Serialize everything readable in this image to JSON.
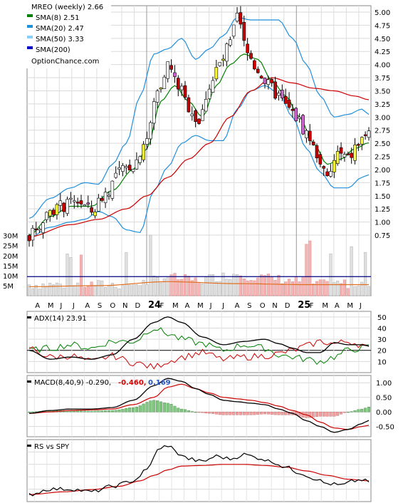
{
  "chart_data": [
    {
      "type": "candlestick",
      "title": "MREO (weekly) 2.66",
      "watermark": "OptionChance.com",
      "legend": [
        {
          "label": "SMA(8) 2.51",
          "color": "#008000"
        },
        {
          "label": "SMA(20) 2.47",
          "color": "#1f8fdc"
        },
        {
          "label": "SMA(50) 3.33",
          "color": "#87cefa"
        },
        {
          "label": "SMA(200)",
          "color": "#0000cc"
        }
      ],
      "legend_placement": "top-left",
      "y_ticks": [
        "5.00",
        "4.75",
        "4.50",
        "4.25",
        "4.00",
        "3.75",
        "3.50",
        "3.25",
        "3.00",
        "2.75",
        "2.50",
        "2.25",
        "2.00",
        "1.75",
        "1.50",
        "1.25",
        "1.00",
        "0.75"
      ],
      "ylim": [
        0.75,
        5.0
      ],
      "grid": true,
      "x_tick_labels": [
        "A",
        "M",
        "J",
        "J",
        "A",
        "S",
        "O",
        "N",
        "D",
        "24",
        "F",
        "M",
        "A",
        "M",
        "J",
        "J",
        "A",
        "S",
        "O",
        "N",
        "D",
        "25",
        "F",
        "M",
        "A",
        "M",
        "J"
      ],
      "price_knots": [
        [
          0,
          0.72
        ],
        [
          3,
          0.95
        ],
        [
          6,
          1.25
        ],
        [
          10,
          1.3
        ],
        [
          14,
          1.4
        ],
        [
          18,
          1.2
        ],
        [
          22,
          1.55
        ],
        [
          26,
          1.95
        ],
        [
          30,
          2.1
        ],
        [
          34,
          2.6
        ],
        [
          37,
          3.5
        ],
        [
          40,
          4.0
        ],
        [
          43,
          3.6
        ],
        [
          46,
          3.2
        ],
        [
          49,
          2.9
        ],
        [
          52,
          3.6
        ],
        [
          55,
          4.0
        ],
        [
          58,
          4.4
        ],
        [
          60,
          4.9
        ],
        [
          63,
          4.2
        ],
        [
          66,
          3.9
        ],
        [
          69,
          3.6
        ],
        [
          72,
          3.4
        ],
        [
          74,
          3.2
        ],
        [
          77,
          3.0
        ],
        [
          80,
          2.7
        ],
        [
          83,
          2.3
        ],
        [
          86,
          1.8
        ],
        [
          89,
          2.3
        ],
        [
          92,
          2.2
        ],
        [
          95,
          2.5
        ],
        [
          98,
          2.75
        ]
      ],
      "sma8_knots": [
        [
          0,
          0.75
        ],
        [
          6,
          1.1
        ],
        [
          12,
          1.3
        ],
        [
          18,
          1.3
        ],
        [
          24,
          1.6
        ],
        [
          30,
          2.0
        ],
        [
          34,
          2.4
        ],
        [
          38,
          3.3
        ],
        [
          42,
          3.6
        ],
        [
          46,
          3.3
        ],
        [
          50,
          3.0
        ],
        [
          54,
          3.6
        ],
        [
          58,
          4.0
        ],
        [
          62,
          4.2
        ],
        [
          66,
          4.1
        ],
        [
          70,
          3.7
        ],
        [
          74,
          3.4
        ],
        [
          78,
          3.0
        ],
        [
          82,
          2.5
        ],
        [
          86,
          2.1
        ],
        [
          90,
          2.2
        ],
        [
          94,
          2.4
        ],
        [
          98,
          2.51
        ]
      ],
      "sma20_knots": [
        [
          0,
          0.85
        ],
        [
          8,
          1.1
        ],
        [
          16,
          1.25
        ],
        [
          22,
          1.3
        ],
        [
          28,
          1.65
        ],
        [
          34,
          2.2
        ],
        [
          40,
          2.9
        ],
        [
          46,
          3.2
        ],
        [
          52,
          3.35
        ],
        [
          58,
          3.7
        ],
        [
          62,
          4.2
        ],
        [
          66,
          4.25
        ],
        [
          70,
          4.2
        ],
        [
          74,
          3.95
        ],
        [
          78,
          3.6
        ],
        [
          82,
          3.2
        ],
        [
          86,
          2.8
        ],
        [
          90,
          2.55
        ],
        [
          94,
          2.45
        ],
        [
          98,
          2.47
        ]
      ],
      "sma50_knots": [
        [
          0,
          0.72
        ],
        [
          12,
          0.95
        ],
        [
          20,
          1.05
        ],
        [
          28,
          1.25
        ],
        [
          34,
          1.5
        ],
        [
          40,
          1.85
        ],
        [
          46,
          2.2
        ],
        [
          52,
          2.5
        ],
        [
          58,
          3.0
        ],
        [
          64,
          3.5
        ],
        [
          70,
          3.75
        ],
        [
          76,
          3.65
        ],
        [
          82,
          3.55
        ],
        [
          88,
          3.5
        ],
        [
          94,
          3.4
        ],
        [
          98,
          3.33
        ]
      ],
      "bb_upper_knots": [
        [
          0,
          1.07
        ],
        [
          6,
          1.45
        ],
        [
          12,
          1.65
        ],
        [
          16,
          1.75
        ],
        [
          20,
          1.72
        ],
        [
          24,
          2.1
        ],
        [
          28,
          2.5
        ],
        [
          32,
          3.4
        ],
        [
          36,
          4.2
        ],
        [
          40,
          4.3
        ],
        [
          44,
          4.5
        ],
        [
          48,
          4.1
        ],
        [
          52,
          4.3
        ],
        [
          56,
          4.55
        ],
        [
          60,
          4.9
        ],
        [
          64,
          4.85
        ],
        [
          68,
          4.85
        ],
        [
          72,
          4.85
        ],
        [
          76,
          4.5
        ],
        [
          80,
          4.0
        ],
        [
          84,
          3.4
        ],
        [
          88,
          3.0
        ],
        [
          92,
          3.05
        ],
        [
          96,
          3.15
        ],
        [
          98,
          3.05
        ]
      ],
      "bb_lower_knots": [
        [
          0,
          0.7
        ],
        [
          6,
          0.9
        ],
        [
          12,
          1.0
        ],
        [
          16,
          1.05
        ],
        [
          20,
          1.2
        ],
        [
          24,
          1.1
        ],
        [
          28,
          0.85
        ],
        [
          32,
          0.8
        ],
        [
          36,
          1.6
        ],
        [
          40,
          2.05
        ],
        [
          44,
          2.5
        ],
        [
          48,
          2.65
        ],
        [
          52,
          2.55
        ],
        [
          56,
          2.55
        ],
        [
          60,
          3.15
        ],
        [
          64,
          3.5
        ],
        [
          68,
          3.6
        ],
        [
          72,
          3.45
        ],
        [
          76,
          3.0
        ],
        [
          80,
          2.4
        ],
        [
          84,
          1.95
        ],
        [
          88,
          1.65
        ],
        [
          92,
          1.65
        ],
        [
          96,
          1.85
        ],
        [
          98,
          1.9
        ]
      ],
      "volume_y_ticks": [
        "30M",
        "25M",
        "20M",
        "15M",
        "10M",
        "5M"
      ]
    },
    {
      "type": "line",
      "title": "ADX(14) 23.91",
      "y_ticks": [
        "50",
        "40",
        "30",
        "20",
        "10"
      ],
      "ylim": [
        0,
        55
      ],
      "adx_knots": [
        [
          0,
          20
        ],
        [
          6,
          12
        ],
        [
          12,
          14
        ],
        [
          18,
          12
        ],
        [
          24,
          16
        ],
        [
          30,
          30
        ],
        [
          36,
          45
        ],
        [
          40,
          50
        ],
        [
          44,
          45
        ],
        [
          50,
          32
        ],
        [
          56,
          25
        ],
        [
          62,
          28
        ],
        [
          68,
          30
        ],
        [
          72,
          26
        ],
        [
          76,
          22
        ],
        [
          80,
          18
        ],
        [
          84,
          18
        ],
        [
          88,
          27
        ],
        [
          92,
          25
        ],
        [
          96,
          25
        ],
        [
          98,
          23.91
        ]
      ],
      "pdi_knots": [
        [
          0,
          20
        ],
        [
          6,
          22
        ],
        [
          12,
          25
        ],
        [
          18,
          22
        ],
        [
          24,
          28
        ],
        [
          30,
          28
        ],
        [
          36,
          40
        ],
        [
          40,
          35
        ],
        [
          44,
          30
        ],
        [
          50,
          26
        ],
        [
          56,
          20
        ],
        [
          62,
          25
        ],
        [
          68,
          22
        ],
        [
          72,
          16
        ],
        [
          76,
          14
        ],
        [
          80,
          12
        ],
        [
          84,
          10
        ],
        [
          88,
          14
        ],
        [
          92,
          20
        ],
        [
          96,
          22
        ],
        [
          98,
          23
        ]
      ],
      "mdi_knots": [
        [
          0,
          22
        ],
        [
          6,
          14
        ],
        [
          12,
          15
        ],
        [
          18,
          10
        ],
        [
          24,
          15
        ],
        [
          30,
          9
        ],
        [
          36,
          5
        ],
        [
          40,
          10
        ],
        [
          44,
          14
        ],
        [
          50,
          18
        ],
        [
          56,
          12
        ],
        [
          62,
          14
        ],
        [
          68,
          15
        ],
        [
          72,
          17
        ],
        [
          76,
          20
        ],
        [
          80,
          24
        ],
        [
          84,
          28
        ],
        [
          88,
          26
        ],
        [
          92,
          28
        ],
        [
          96,
          25
        ],
        [
          98,
          21
        ]
      ]
    },
    {
      "type": "line",
      "title": "MACD(8,40,9) -0.290,",
      "title_values": [
        {
          "text": "-0.460,",
          "color": "#dd0000"
        },
        {
          "text": "0.169",
          "color": "#2255bb"
        }
      ],
      "y_ticks": [
        "1.00",
        "0.50",
        "0.00",
        "-0.50"
      ],
      "ylim": [
        -0.85,
        1.25
      ],
      "macd_knots": [
        [
          0,
          -0.05
        ],
        [
          6,
          0.05
        ],
        [
          12,
          0.1
        ],
        [
          18,
          0.1
        ],
        [
          24,
          0.15
        ],
        [
          30,
          0.4
        ],
        [
          36,
          0.9
        ],
        [
          40,
          1.15
        ],
        [
          44,
          1.05
        ],
        [
          48,
          0.8
        ],
        [
          52,
          0.6
        ],
        [
          56,
          0.4
        ],
        [
          60,
          0.35
        ],
        [
          64,
          0.3
        ],
        [
          68,
          0.25
        ],
        [
          72,
          0.1
        ],
        [
          76,
          -0.05
        ],
        [
          80,
          -0.3
        ],
        [
          84,
          -0.5
        ],
        [
          88,
          -0.7
        ],
        [
          92,
          -0.6
        ],
        [
          96,
          -0.4
        ],
        [
          98,
          -0.29
        ]
      ],
      "signal_knots": [
        [
          0,
          -0.05
        ],
        [
          6,
          0.0
        ],
        [
          12,
          0.05
        ],
        [
          18,
          0.07
        ],
        [
          24,
          0.1
        ],
        [
          30,
          0.25
        ],
        [
          36,
          0.5
        ],
        [
          40,
          0.85
        ],
        [
          44,
          0.95
        ],
        [
          48,
          0.8
        ],
        [
          52,
          0.65
        ],
        [
          56,
          0.5
        ],
        [
          60,
          0.45
        ],
        [
          64,
          0.4
        ],
        [
          68,
          0.32
        ],
        [
          72,
          0.2
        ],
        [
          76,
          0.05
        ],
        [
          80,
          -0.1
        ],
        [
          84,
          -0.35
        ],
        [
          88,
          -0.55
        ],
        [
          92,
          -0.6
        ],
        [
          96,
          -0.5
        ],
        [
          98,
          -0.46
        ]
      ]
    },
    {
      "type": "line",
      "title": "RS vs SPY",
      "rs_knots": [
        [
          0,
          0.05
        ],
        [
          6,
          0.15
        ],
        [
          12,
          0.15
        ],
        [
          18,
          0.1
        ],
        [
          24,
          0.2
        ],
        [
          30,
          0.3
        ],
        [
          34,
          0.5
        ],
        [
          37,
          0.85
        ],
        [
          40,
          0.95
        ],
        [
          43,
          0.8
        ],
        [
          46,
          0.7
        ],
        [
          50,
          0.65
        ],
        [
          54,
          0.75
        ],
        [
          58,
          0.7
        ],
        [
          62,
          0.78
        ],
        [
          66,
          0.72
        ],
        [
          70,
          0.65
        ],
        [
          74,
          0.55
        ],
        [
          78,
          0.45
        ],
        [
          82,
          0.35
        ],
        [
          86,
          0.25
        ],
        [
          90,
          0.22
        ],
        [
          94,
          0.3
        ],
        [
          96,
          0.32
        ],
        [
          98,
          0.28
        ]
      ],
      "rs_sma_knots": [
        [
          0,
          0.05
        ],
        [
          10,
          0.1
        ],
        [
          18,
          0.14
        ],
        [
          26,
          0.2
        ],
        [
          32,
          0.3
        ],
        [
          36,
          0.4
        ],
        [
          40,
          0.5
        ],
        [
          44,
          0.57
        ],
        [
          50,
          0.58
        ],
        [
          56,
          0.6
        ],
        [
          62,
          0.6
        ],
        [
          68,
          0.58
        ],
        [
          74,
          0.55
        ],
        [
          80,
          0.48
        ],
        [
          86,
          0.4
        ],
        [
          92,
          0.33
        ],
        [
          98,
          0.3
        ]
      ]
    }
  ]
}
